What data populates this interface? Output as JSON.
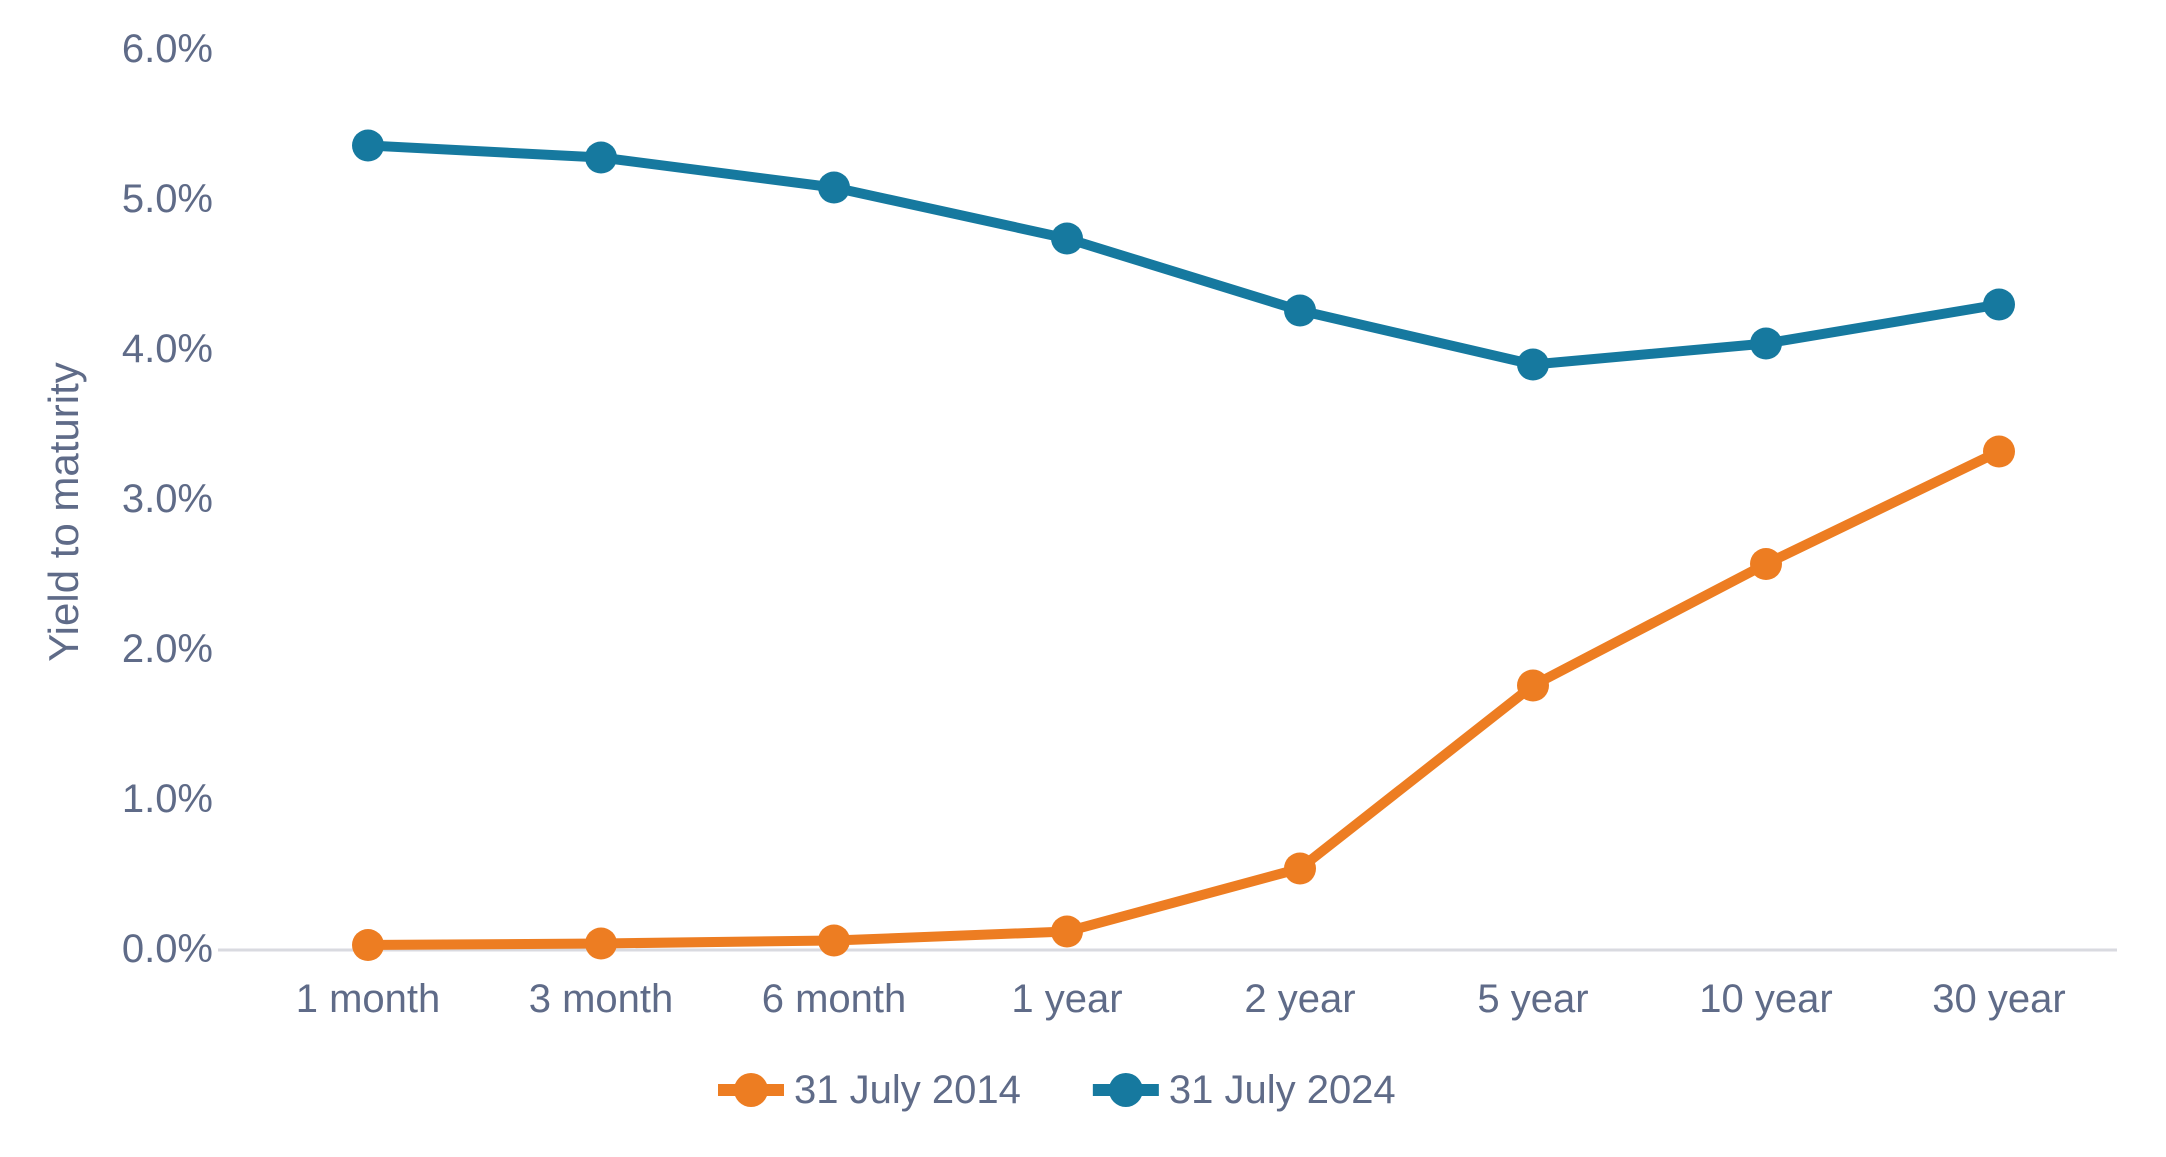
{
  "chart_data": {
    "type": "line",
    "title": "",
    "ylabel": "Yield to maturity",
    "xlabel": "",
    "categories": [
      "1 month",
      "3 month",
      "6 month",
      "1 year",
      "2 year",
      "5 year",
      "10 year",
      "30 year"
    ],
    "series": [
      {
        "name": "31 July 2014",
        "color": "#ED7D22",
        "values": [
          0.02,
          0.03,
          0.05,
          0.11,
          0.53,
          1.75,
          2.56,
          3.31
        ]
      },
      {
        "name": "31 July 2024",
        "color": "#16799F",
        "values": [
          5.35,
          5.27,
          5.07,
          4.73,
          4.25,
          3.89,
          4.03,
          4.29
        ]
      }
    ],
    "y_ticks": [
      "0.0%",
      "1.0%",
      "2.0%",
      "3.0%",
      "4.0%",
      "5.0%",
      "6.0%"
    ],
    "ylim": [
      0,
      6
    ],
    "grid": false,
    "legend_position": "bottom",
    "marker": "circle",
    "text_color": "#5F6B88",
    "axis_line_color": "#D9DAE0",
    "background": "#FFFFFF"
  }
}
